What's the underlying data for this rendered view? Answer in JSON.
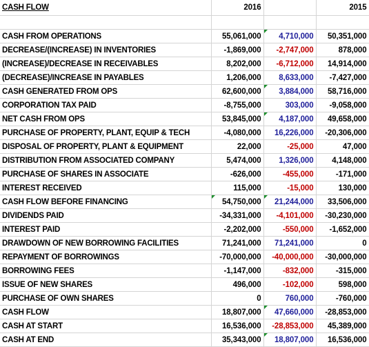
{
  "sheet": {
    "title": "CASH FLOW",
    "col_headers": [
      "2016",
      "",
      "2015"
    ],
    "rows": [
      {
        "label": "",
        "c2016": "",
        "mid": "",
        "c2015": "",
        "mid_color": "pos"
      },
      {
        "label": "CASH FROM OPERATIONS",
        "c2016": "55,061,000",
        "mid": "4,710,000",
        "c2015": "50,351,000",
        "mid_color": "pos",
        "marker": true
      },
      {
        "label": "DECREASE/(INCREASE) IN INVENTORIES",
        "c2016": "-1,869,000",
        "mid": "-2,747,000",
        "c2015": "878,000",
        "mid_color": "neg"
      },
      {
        "label": "(INCREASE)/DECREASE IN RECEIVABLES",
        "c2016": "8,202,000",
        "mid": "-6,712,000",
        "c2015": "14,914,000",
        "mid_color": "neg"
      },
      {
        "label": "(DECREASE)/INCREASE IN PAYABLES",
        "c2016": "1,206,000",
        "mid": "8,633,000",
        "c2015": "-7,427,000",
        "mid_color": "pos"
      },
      {
        "label": "CASH GENERATED FROM OPS",
        "c2016": "62,600,000",
        "mid": "3,884,000",
        "c2015": "58,716,000",
        "mid_color": "pos",
        "marker": true
      },
      {
        "label": "CORPORATION TAX PAID",
        "c2016": "-8,755,000",
        "mid": "303,000",
        "c2015": "-9,058,000",
        "mid_color": "pos"
      },
      {
        "label": "NET CASH FROM OPS",
        "c2016": "53,845,000",
        "mid": "4,187,000",
        "c2015": "49,658,000",
        "mid_color": "pos",
        "marker": true
      },
      {
        "label": "PURCHASE OF PROPERTY, PLANT, EQUIP & TECH",
        "c2016": "-4,080,000",
        "mid": "16,226,000",
        "c2015": "-20,306,000",
        "mid_color": "pos"
      },
      {
        "label": "DISPOSAL OF PROPERTY, PLANT & EQUIPMENT",
        "c2016": "22,000",
        "mid": "-25,000",
        "c2015": "47,000",
        "mid_color": "neg"
      },
      {
        "label": "DISTRIBUTION FROM ASSOCIATED COMPANY",
        "c2016": "5,474,000",
        "mid": "1,326,000",
        "c2015": "4,148,000",
        "mid_color": "pos"
      },
      {
        "label": "PURCHASE OF SHARES IN ASSOCIATE",
        "c2016": "-626,000",
        "mid": "-455,000",
        "c2015": "-171,000",
        "mid_color": "neg"
      },
      {
        "label": "INTEREST RECEIVED",
        "c2016": "115,000",
        "mid": "-15,000",
        "c2015": "130,000",
        "mid_color": "neg"
      },
      {
        "label": "CASH FLOW BEFORE FINANCING",
        "c2016": "54,750,000",
        "mid": "21,244,000",
        "c2015": "33,506,000",
        "mid_color": "pos",
        "marker": true,
        "marker2": true
      },
      {
        "label": "DIVIDENDS PAID",
        "c2016": "-34,331,000",
        "mid": "-4,101,000",
        "c2015": "-30,230,000",
        "mid_color": "neg"
      },
      {
        "label": "INTEREST PAID",
        "c2016": "-2,202,000",
        "mid": "-550,000",
        "c2015": "-1,652,000",
        "mid_color": "neg"
      },
      {
        "label": "DRAWDOWN OF NEW BORROWING FACILITIES",
        "c2016": "71,241,000",
        "mid": "71,241,000",
        "c2015": "0",
        "mid_color": "pos"
      },
      {
        "label": "REPAYMENT OF BORROWINGS",
        "c2016": "-70,000,000",
        "mid": "-40,000,000",
        "c2015": "-30,000,000",
        "mid_color": "neg"
      },
      {
        "label": "BORROWING FEES",
        "c2016": "-1,147,000",
        "mid": "-832,000",
        "c2015": "-315,000",
        "mid_color": "neg"
      },
      {
        "label": "ISSUE OF NEW SHARES",
        "c2016": "496,000",
        "mid": "-102,000",
        "c2015": "598,000",
        "mid_color": "neg"
      },
      {
        "label": "PURCHASE OF OWN SHARES",
        "c2016": "0",
        "mid": "760,000",
        "c2015": "-760,000",
        "mid_color": "pos"
      },
      {
        "label": "CASH FLOW",
        "c2016": "18,807,000",
        "mid": "47,660,000",
        "c2015": "-28,853,000",
        "mid_color": "pos",
        "marker": true
      },
      {
        "label": "CASH AT START",
        "c2016": "16,536,000",
        "mid": "-28,853,000",
        "c2015": "45,389,000",
        "mid_color": "neg"
      },
      {
        "label": "CASH AT END",
        "c2016": "35,343,000",
        "mid": "18,807,000",
        "c2015": "16,536,000",
        "mid_color": "pos",
        "marker": true
      }
    ]
  },
  "colors": {
    "positive_change": "#1f1f9a",
    "negative_change": "#c00000",
    "comment_marker": "#1e8f2e"
  }
}
